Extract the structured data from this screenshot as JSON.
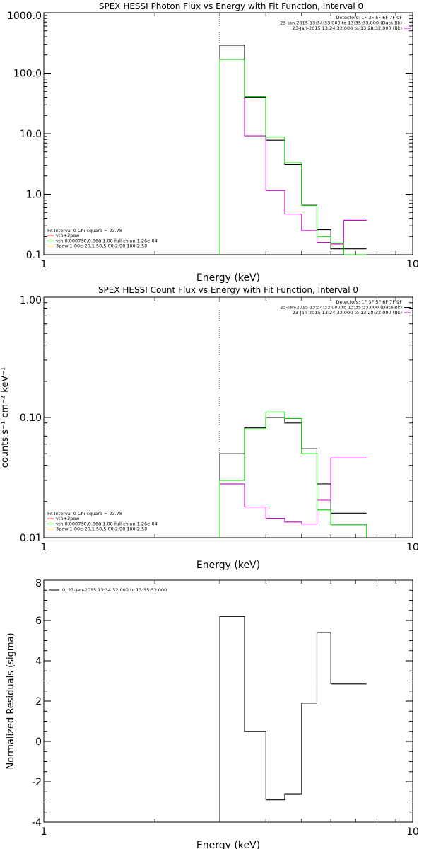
{
  "chart_data": [
    {
      "type": "line",
      "title": "SPEX HESSI Photon Flux vs Energy with Fit Function, Interval 0",
      "xlabel": "Energy (keV)",
      "ylabel": "",
      "xscale": "log",
      "yscale": "log",
      "xlim": [
        1,
        10
      ],
      "ylim": [
        0.1,
        1000
      ],
      "xticks": [
        {
          "v": 1,
          "label": "1"
        },
        {
          "v": 10,
          "label": "10"
        }
      ],
      "yticks": [
        {
          "v": 0.1,
          "label": "0.1"
        },
        {
          "v": 1,
          "label": "1.0"
        },
        {
          "v": 10,
          "label": "10.0"
        },
        {
          "v": 100,
          "label": "100.0"
        },
        {
          "v": 1000,
          "label": "1000.0"
        }
      ],
      "dotted_line_x": 3.0,
      "legend_top": [
        {
          "text": "Detectors: 1F 3F 5F 6F 7F 9F",
          "color": ""
        },
        {
          "text": "23-Jan-2015 13:34:33.000 to 13:35:33.000 (Data-Bk)",
          "color": "#000000"
        },
        {
          "text": "23-Jan-2015 13:24:32.000 to 13:28:32.000 (Bk)",
          "color": "#cc00cc"
        }
      ],
      "legend_bottom": [
        {
          "text": "Fit Interval 0   Chi-square = 23.78",
          "color": ""
        },
        {
          "text": "vth+3pow",
          "color": "#cc0000"
        },
        {
          "text": "vth 0.000730,0.868,1.00  full chian 1.26e-04",
          "color": "#00cc00"
        },
        {
          "text": "3pow 1.00e-20,1.50,5.00,2.00,100,2.50",
          "color": "#cc9900"
        }
      ],
      "edges": [
        3.0,
        3.5,
        4.0,
        4.5,
        5.0,
        5.5,
        6.0,
        6.5,
        7.0,
        7.5
      ],
      "series": [
        {
          "name": "Data-Bk",
          "color": "#000000",
          "start_from_bottom": true,
          "end_to_bottom": false,
          "values": [
            290,
            40,
            7.8,
            3.1,
            0.68,
            0.26,
            0.125,
            0.125,
            0.125
          ]
        },
        {
          "name": "Bk",
          "color": "#cc00cc",
          "start_from_bottom": true,
          "end_to_bottom": false,
          "values": [
            170,
            9.2,
            1.15,
            0.47,
            0.25,
            0.16,
            0.15,
            0.37,
            0.37
          ]
        },
        {
          "name": "vth 0.000730,0.868,1.00  full chian 1.26e-04",
          "color": "#00cc00",
          "start_from_bottom": true,
          "end_to_bottom": true,
          "values": [
            170,
            41,
            8.8,
            3.3,
            0.65,
            0.2,
            0.155,
            0.1,
            0.1
          ]
        }
      ]
    },
    {
      "type": "line",
      "title": "SPEX HESSI Count Flux vs Energy with Fit Function, Interval 0",
      "xlabel": "Energy (keV)",
      "ylabel": "counts s⁻¹ cm⁻² keV⁻¹",
      "xscale": "log",
      "yscale": "log",
      "xlim": [
        1,
        10
      ],
      "ylim": [
        0.01,
        1.0
      ],
      "xticks": [
        {
          "v": 1,
          "label": "1"
        },
        {
          "v": 10,
          "label": "10"
        }
      ],
      "yticks": [
        {
          "v": 0.01,
          "label": "0.01"
        },
        {
          "v": 0.1,
          "label": "0.10"
        },
        {
          "v": 1.0,
          "label": "1.00"
        }
      ],
      "dotted_line_x": 3.0,
      "legend_top": [
        {
          "text": "Detectors: 1F 3F 5F 6F 7F 9F",
          "color": ""
        },
        {
          "text": "23-Jan-2015 13:34:33.000 to 13:35:33.000 (Data-Bk)",
          "color": "#000000"
        },
        {
          "text": "23-Jan-2015 13:24:32.000 to 13:28:32.000 (Bk)",
          "color": "#cc00cc"
        }
      ],
      "legend_bottom": [
        {
          "text": "Fit Interval 0   Chi-square = 23.78",
          "color": ""
        },
        {
          "text": "vth+3pow",
          "color": "#cc0000"
        },
        {
          "text": "vth 0.000730,0.868,1.00  full chian 1.26e-04",
          "color": "#00cc00"
        },
        {
          "text": "3pow 1.00e-20,1.50,5.00,2.00,100,2.50",
          "color": "#cc9900"
        }
      ],
      "edges": [
        3.0,
        3.5,
        4.0,
        4.5,
        5.0,
        5.5,
        6.0,
        6.5,
        7.0,
        7.5
      ],
      "series": [
        {
          "name": "Data-Bk",
          "color": "#000000",
          "start_from_bottom": true,
          "end_to_bottom": false,
          "values": [
            0.05,
            0.082,
            0.1,
            0.09,
            0.055,
            0.028,
            0.016,
            0.016,
            0.016
          ]
        },
        {
          "name": "Bk",
          "color": "#cc00cc",
          "start_from_bottom": true,
          "end_to_bottom": false,
          "values": [
            0.028,
            0.018,
            0.0145,
            0.0135,
            0.013,
            0.0205,
            0.046,
            0.046,
            0.046
          ]
        },
        {
          "name": "vth 0.000730,0.868,1.00  full chian 1.26e-04",
          "color": "#00cc00",
          "start_from_bottom": true,
          "end_to_bottom": true,
          "values": [
            0.03,
            0.08,
            0.111,
            0.098,
            0.05,
            0.017,
            0.0128,
            0.0128,
            0.0128
          ]
        }
      ]
    },
    {
      "type": "line",
      "title": "",
      "xlabel": "Energy (keV)",
      "ylabel": "Normalized Residuals (sigma)",
      "xscale": "log",
      "yscale": "linear",
      "xlim": [
        1,
        10
      ],
      "ylim": [
        -4,
        8
      ],
      "xticks": [
        {
          "v": 1,
          "label": "1"
        },
        {
          "v": 10,
          "label": "10"
        }
      ],
      "yticks": [
        {
          "v": -4,
          "label": "-4"
        },
        {
          "v": -2,
          "label": "-2"
        },
        {
          "v": 0,
          "label": "0"
        },
        {
          "v": 2,
          "label": "2"
        },
        {
          "v": 4,
          "label": "4"
        },
        {
          "v": 6,
          "label": "6"
        },
        {
          "v": 8,
          "label": "8"
        }
      ],
      "legend_top_left": [
        {
          "text": "0, 23-Jan-2015 13:34:32.000 to 13:35:33.000",
          "color": "#000000"
        }
      ],
      "edges": [
        3.0,
        3.5,
        4.0,
        4.5,
        5.0,
        5.5,
        6.0,
        6.5,
        7.0,
        7.5
      ],
      "series": [
        {
          "name": "",
          "color": "#000000",
          "start_from_bottom": true,
          "end_to_bottom": false,
          "values": [
            6.2,
            0.5,
            -2.9,
            -2.6,
            1.9,
            5.4,
            2.85,
            2.85,
            2.85
          ]
        }
      ]
    }
  ]
}
